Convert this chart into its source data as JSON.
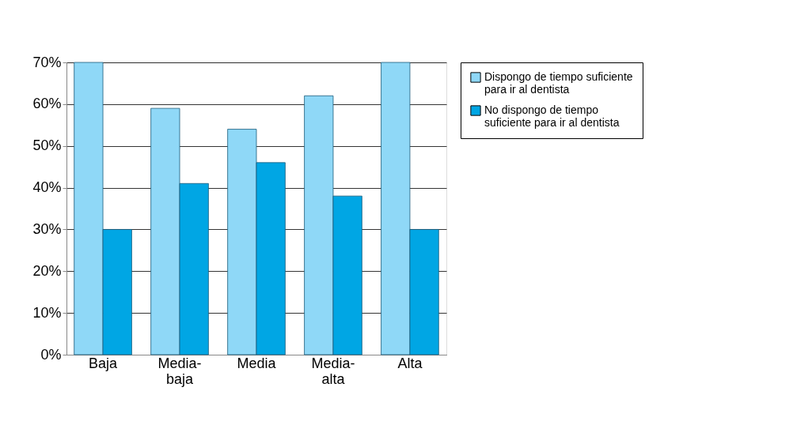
{
  "chart_data": {
    "type": "bar",
    "categories": [
      "Baja",
      "Media-baja",
      "Media",
      "Media-alta",
      "Alta"
    ],
    "series": [
      {
        "name": "Dispongo de tiempo suficiente para ir al dentista",
        "color": "#8fd8f7",
        "values": [
          70,
          59,
          54,
          62,
          70
        ]
      },
      {
        "name": "No dispongo de tiempo suficiente para ir al dentista",
        "color": "#00a6e4",
        "values": [
          30,
          41,
          46,
          38,
          30
        ]
      }
    ],
    "ylim": [
      0,
      70
    ],
    "yticks": [
      {
        "value": 0,
        "label": "0%"
      },
      {
        "value": 10,
        "label": "10%"
      },
      {
        "value": 20,
        "label": "20%"
      },
      {
        "value": 30,
        "label": "30%"
      },
      {
        "value": 40,
        "label": "40%"
      },
      {
        "value": 50,
        "label": "50%"
      },
      {
        "value": 60,
        "label": "60%"
      },
      {
        "value": 70,
        "label": "70%"
      }
    ],
    "grid": "y",
    "legend": "right"
  }
}
